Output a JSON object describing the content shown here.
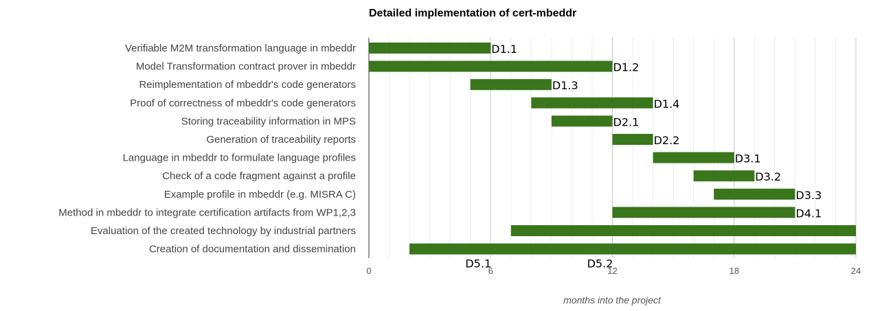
{
  "chart_data": {
    "type": "bar",
    "title": "Detailed implementation of cert-mbeddr",
    "xlabel": "months into the project",
    "ylabel": "",
    "xlim": [
      0,
      24
    ],
    "xticks": [
      0,
      6,
      12,
      18,
      24
    ],
    "grid": true,
    "bar_color": "#3a761c",
    "tasks": [
      {
        "label": "Verifiable M2M transformation language in mbeddr",
        "start": 0,
        "end": 6
      },
      {
        "label": "Model Transformation contract prover in mbeddr",
        "start": 0,
        "end": 12
      },
      {
        "label": "Reimplementation of mbeddr's code generators",
        "start": 5,
        "end": 9
      },
      {
        "label": "Proof of correctness of mbeddr's code generators",
        "start": 8,
        "end": 14
      },
      {
        "label": "Storing traceability information in MPS",
        "start": 9,
        "end": 12
      },
      {
        "label": "Generation of traceability reports",
        "start": 12,
        "end": 14
      },
      {
        "label": "Language in mbeddr to formulate language profiles",
        "start": 14,
        "end": 18
      },
      {
        "label": "Check of a code fragment against a profile",
        "start": 16,
        "end": 19
      },
      {
        "label": "Example profile in mbeddr (e.g. MISRA C)",
        "start": 17,
        "end": 21
      },
      {
        "label": "Method in mbeddr to integrate certification artifacts from WP1,2,3",
        "start": 12,
        "end": 21
      },
      {
        "label": "Evaluation of the created technology by industrial partners",
        "start": 7,
        "end": 24
      },
      {
        "label": "Creation of documentation and dissemination",
        "start": 2,
        "end": 24
      }
    ],
    "deliverables": [
      {
        "label": "D1.1",
        "task": 0,
        "month": 6,
        "placement": "bar-end"
      },
      {
        "label": "D1.2",
        "task": 1,
        "month": 12,
        "placement": "bar-end"
      },
      {
        "label": "D1.3",
        "task": 2,
        "month": 9,
        "placement": "bar-end"
      },
      {
        "label": "D1.4",
        "task": 3,
        "month": 14,
        "placement": "bar-end"
      },
      {
        "label": "D2.1",
        "task": 4,
        "month": 12,
        "placement": "bar-end"
      },
      {
        "label": "D2.2",
        "task": 5,
        "month": 14,
        "placement": "bar-end"
      },
      {
        "label": "D3.1",
        "task": 6,
        "month": 18,
        "placement": "bar-end"
      },
      {
        "label": "D3.2",
        "task": 7,
        "month": 19,
        "placement": "bar-end"
      },
      {
        "label": "D3.3",
        "task": 8,
        "month": 21,
        "placement": "bar-end"
      },
      {
        "label": "D4.1",
        "task": 9,
        "month": 21,
        "placement": "bar-end"
      },
      {
        "label": "D5.1",
        "task": 11,
        "month": 6,
        "placement": "below-bar"
      },
      {
        "label": "D5.2",
        "task": 11,
        "month": 12,
        "placement": "below-bar"
      }
    ]
  }
}
